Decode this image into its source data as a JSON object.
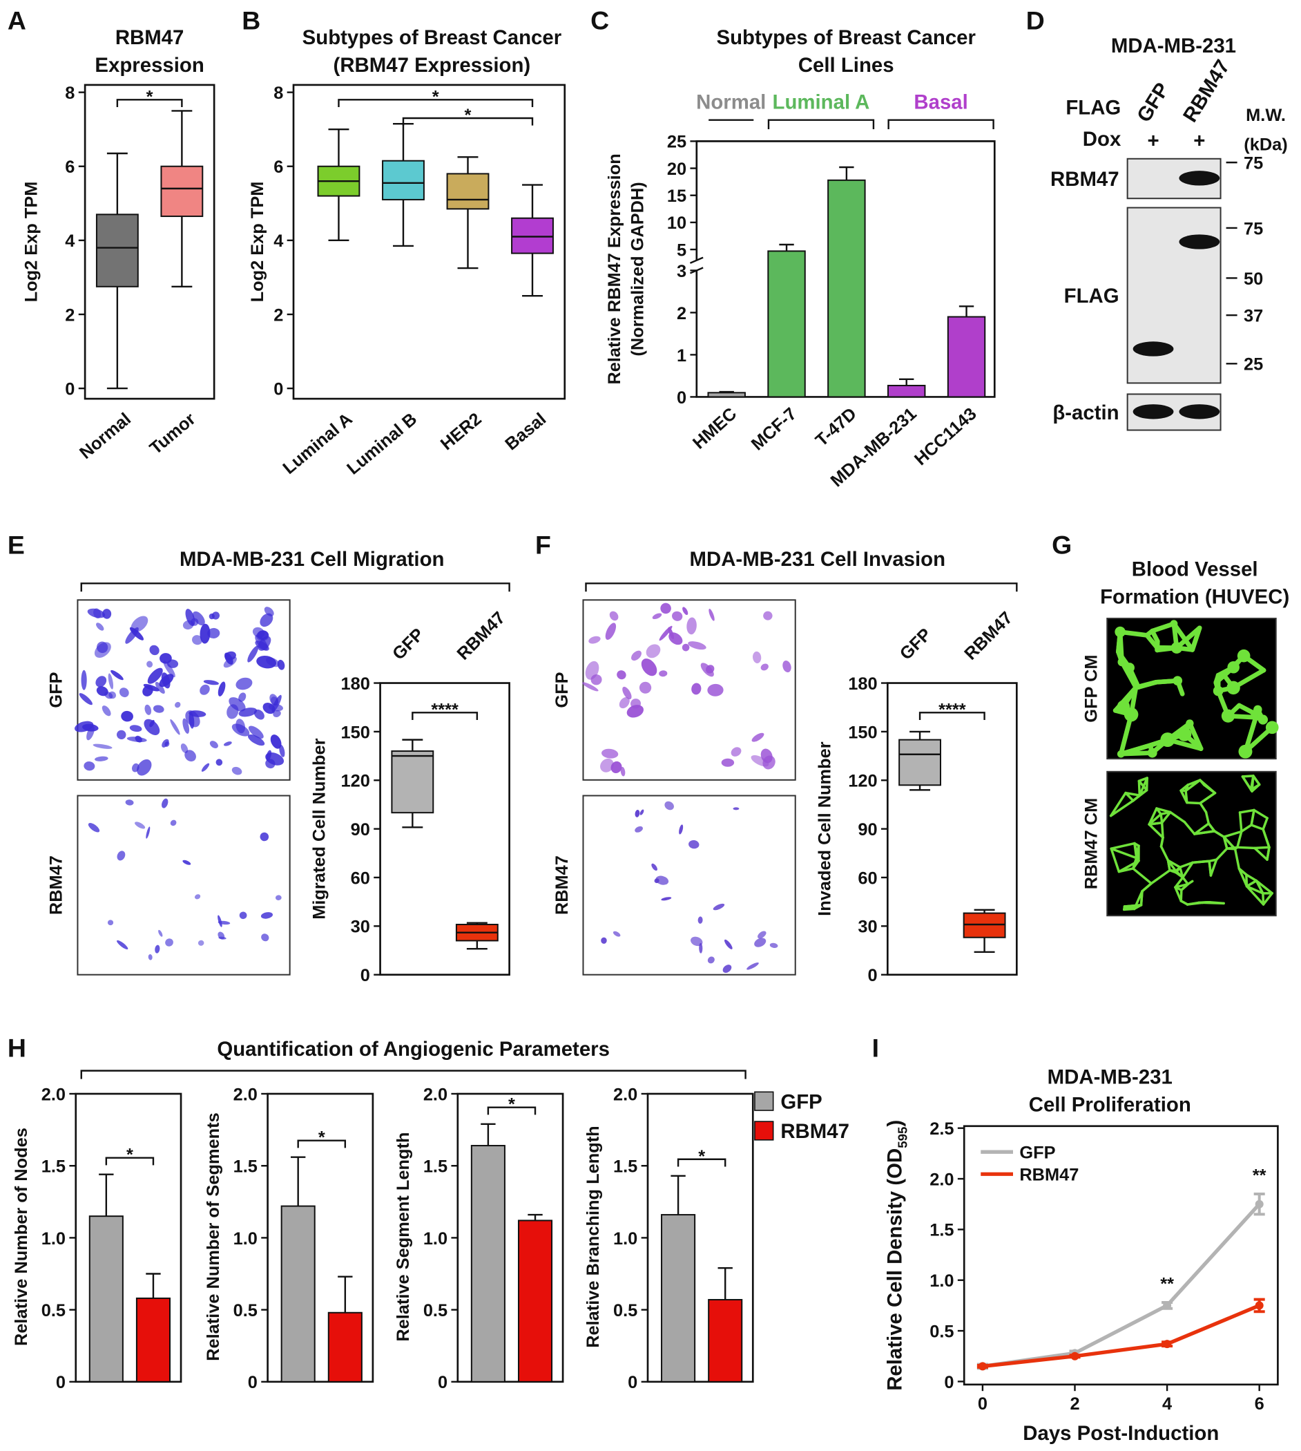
{
  "chart_data": [
    {
      "type": "box",
      "panel": "A",
      "title": [
        "RBM47",
        "Expression"
      ],
      "ylabel": "Log2 Exp TPM",
      "categories": [
        "Normal",
        "Tumor"
      ],
      "colors": [
        "#737373",
        "#f08583"
      ],
      "values": [
        {
          "min": 0,
          "q1": 2.75,
          "median": 3.8,
          "q3": 4.7,
          "max": 6.35
        },
        {
          "min": 2.75,
          "q1": 4.65,
          "median": 5.4,
          "q3": 6.0,
          "max": 7.5
        }
      ],
      "ylim": [
        -0.28,
        8.2
      ],
      "yticks": [
        0,
        2,
        4,
        6,
        8
      ],
      "significance": [
        {
          "label": "*",
          "between": [
            "Normal",
            "Tumor"
          ]
        }
      ]
    },
    {
      "type": "box",
      "panel": "B",
      "title": [
        "Subtypes of Breast Cancer",
        "(RBM47 Expression)"
      ],
      "ylabel": "Log2 Exp TPM",
      "categories": [
        "Luminal A",
        "Luminal B",
        "HER2",
        "Basal"
      ],
      "colors": [
        "#7ccd2c",
        "#5cc9d0",
        "#c9ab5c",
        "#b23dd0"
      ],
      "values": [
        {
          "min": 4.0,
          "q1": 5.2,
          "median": 5.6,
          "q3": 6.0,
          "max": 7.0
        },
        {
          "min": 3.85,
          "q1": 5.1,
          "median": 5.55,
          "q3": 6.15,
          "max": 7.15
        },
        {
          "min": 3.25,
          "q1": 4.85,
          "median": 5.1,
          "q3": 5.8,
          "max": 6.25
        },
        {
          "min": 2.5,
          "q1": 3.65,
          "median": 4.1,
          "q3": 4.6,
          "max": 5.5
        }
      ],
      "ylim": [
        -0.28,
        8.2
      ],
      "yticks": [
        0,
        2,
        4,
        6,
        8
      ],
      "significance": [
        {
          "label": "*",
          "between": [
            "Luminal A",
            "Basal"
          ]
        },
        {
          "label": "*",
          "between": [
            "Luminal B",
            "Basal"
          ]
        }
      ]
    },
    {
      "type": "bar",
      "panel": "C",
      "title": [
        "Subtypes of Breast Cancer",
        "Cell Lines"
      ],
      "ylabel": [
        "Relative RBM47 Expression",
        "(Normalized GAPDH)"
      ],
      "categories": [
        "HMEC",
        "MCF-7",
        "T-47D",
        "MDA-MB-231",
        "HCC1143"
      ],
      "values": [
        0.1,
        4.7,
        17.8,
        0.27,
        1.9
      ],
      "errors": [
        0.02,
        1.2,
        2.4,
        0.15,
        0.25
      ],
      "colors": [
        "#a6a6a6",
        "#5cb85c",
        "#5cb85c",
        "#b03fcb",
        "#b03fcb"
      ],
      "groups": [
        {
          "label": "Normal",
          "color": "#8c8c8c",
          "members": [
            "HMEC"
          ]
        },
        {
          "label": "Luminal A",
          "color": "#5cb85c",
          "members": [
            "MCF-7",
            "T-47D"
          ]
        },
        {
          "label": "Basal",
          "color": "#b03fcb",
          "members": [
            "MDA-MB-231",
            "HCC1143"
          ]
        }
      ],
      "ylim": [
        0,
        25
      ],
      "axis_break": 3,
      "yticks": [
        0,
        1,
        2,
        3,
        5,
        10,
        15,
        20,
        25
      ]
    },
    {
      "type": "blot",
      "panel": "D",
      "title": "MDA-MB-231",
      "row_labels": [
        "FLAG",
        "Dox"
      ],
      "lanes": [
        {
          "name": "GFP",
          "dox": "+"
        },
        {
          "name": "RBM47",
          "dox": "+"
        }
      ],
      "mw_label": [
        "M.W.",
        "(kDa)"
      ],
      "blots": [
        {
          "label": "RBM47",
          "markers": [
            75
          ]
        },
        {
          "label": "FLAG",
          "markers": [
            75,
            50,
            37,
            25
          ]
        },
        {
          "label": "β-actin",
          "markers": []
        }
      ]
    },
    {
      "type": "box",
      "panel": "E",
      "title": "MDA-MB-231 Cell Migration",
      "images": [
        "GFP",
        "RBM47"
      ],
      "ylabel": "Migrated Cell Number",
      "categories": [
        "GFP",
        "RBM47"
      ],
      "colors": [
        "#b3b3b3",
        "#e8320c"
      ],
      "values": [
        {
          "min": 91,
          "q1": 100,
          "median": 135,
          "q3": 138,
          "max": 145
        },
        {
          "min": 16,
          "q1": 21,
          "median": 26,
          "q3": 31,
          "max": 32
        }
      ],
      "ylim": [
        0,
        180
      ],
      "yticks": [
        0,
        30,
        60,
        90,
        120,
        150,
        180
      ],
      "significance": [
        {
          "label": "****",
          "between": [
            "GFP",
            "RBM47"
          ]
        }
      ]
    },
    {
      "type": "box",
      "panel": "F",
      "title": "MDA-MB-231 Cell Invasion",
      "images": [
        "GFP",
        "RBM47"
      ],
      "ylabel": "Invaded Cell Number",
      "categories": [
        "GFP",
        "RBM47"
      ],
      "colors": [
        "#b3b3b3",
        "#e8320c"
      ],
      "values": [
        {
          "min": 114,
          "q1": 117,
          "median": 136,
          "q3": 145,
          "max": 150
        },
        {
          "min": 14,
          "q1": 23,
          "median": 31,
          "q3": 38,
          "max": 40
        }
      ],
      "ylim": [
        0,
        180
      ],
      "yticks": [
        0,
        30,
        60,
        90,
        120,
        150,
        180
      ],
      "significance": [
        {
          "label": "****",
          "between": [
            "GFP",
            "RBM47"
          ]
        }
      ]
    },
    {
      "type": "image-panel",
      "panel": "G",
      "title": [
        "Blood Vessel",
        "Formation (HUVEC)"
      ],
      "images": [
        "GFP CM",
        "RBM47 CM"
      ]
    },
    {
      "type": "bar-panels",
      "panel": "H",
      "title": "Quantification of Angiogenic Parameters",
      "series": [
        {
          "name": "GFP",
          "color": "#a6a6a6"
        },
        {
          "name": "RBM47",
          "color": "#e60f0a"
        }
      ],
      "panels": [
        {
          "ylabel": "Relative Number of Nodes",
          "values": [
            1.15,
            0.58
          ],
          "errors": [
            0.29,
            0.17
          ],
          "significance": "*"
        },
        {
          "ylabel": "Relative Number of Segments",
          "values": [
            1.22,
            0.48
          ],
          "errors": [
            0.34,
            0.25
          ],
          "significance": "*"
        },
        {
          "ylabel": "Relative Segment Length",
          "values": [
            1.64,
            1.12
          ],
          "errors": [
            0.15,
            0.04
          ],
          "significance": "*"
        },
        {
          "ylabel": "Relative Branching Length",
          "values": [
            1.16,
            0.57
          ],
          "errors": [
            0.27,
            0.22
          ],
          "significance": "*"
        }
      ],
      "ylim": [
        0,
        2
      ],
      "yticks": [
        0,
        0.5,
        {
          "value": 1,
          "label": "1.0"
        },
        1.5,
        {
          "value": 2,
          "label": "2.0"
        }
      ]
    },
    {
      "type": "line",
      "panel": "I",
      "title": [
        "MDA-MB-231",
        "Cell Proliferation"
      ],
      "xlabel": "Days Post-Induction",
      "ylabel": [
        "Relative Cell Density (OD",
        "595",
        ")"
      ],
      "x": [
        0,
        2,
        4,
        6
      ],
      "series": [
        {
          "name": "GFP",
          "color": "#b3b3b3",
          "values": [
            0.15,
            0.28,
            0.75,
            1.75
          ],
          "errors": [
            0.02,
            0.02,
            0.03,
            0.1
          ]
        },
        {
          "name": "RBM47",
          "color": "#e8320c",
          "values": [
            0.15,
            0.25,
            0.37,
            0.75
          ],
          "errors": [
            0.01,
            0.01,
            0.02,
            0.06
          ]
        }
      ],
      "annotations": [
        {
          "label": "**",
          "x": 4
        },
        {
          "label": "**",
          "x": 6
        }
      ],
      "xlim": [
        -0.4,
        6.4
      ],
      "ylim": [
        -0.03,
        2.52
      ],
      "xticks": [
        0,
        2,
        4,
        6
      ],
      "yticks": [
        0,
        0.5,
        {
          "value": 1,
          "label": "1.0"
        },
        1.5,
        {
          "value": 2,
          "label": "2.0"
        },
        2.5
      ],
      "legend": "upper left"
    }
  ]
}
